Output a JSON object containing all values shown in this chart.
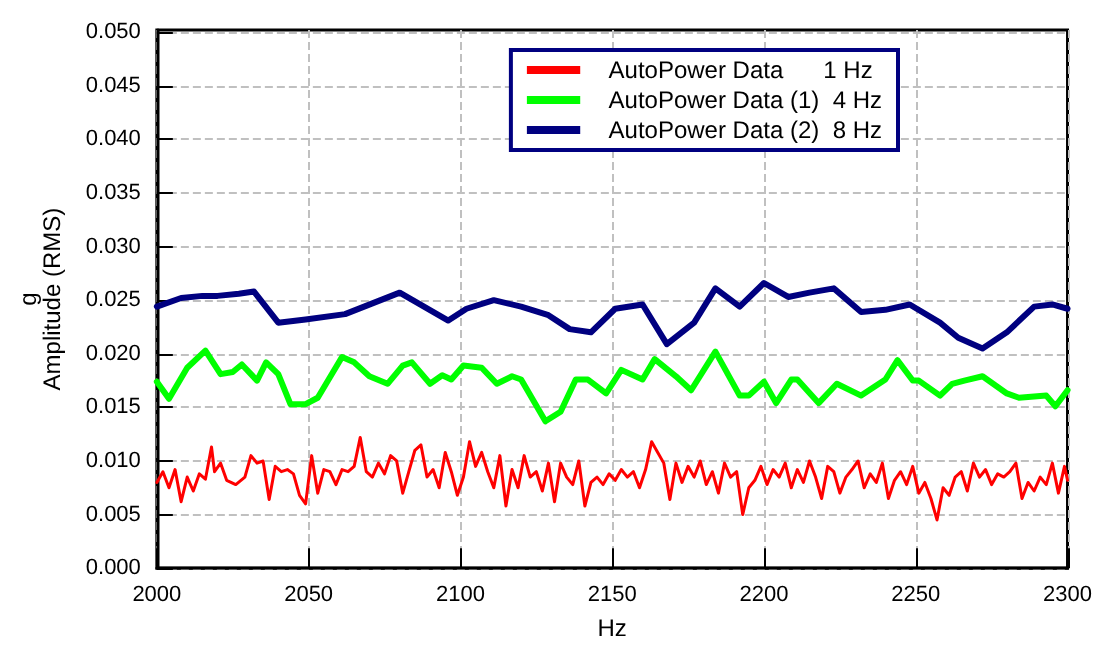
{
  "chart_data": {
    "type": "line",
    "xlabel": "Hz",
    "ylabel": "g\nAmplitude (RMS)",
    "xlim": [
      2000,
      2300
    ],
    "xticks": [
      2000,
      2050,
      2100,
      2150,
      2200,
      2250,
      2300
    ],
    "ylim": [
      0,
      0.0502
    ],
    "yticks": [
      {
        "value": 0,
        "label": "0.000"
      },
      {
        "value": 0.005,
        "label": "0.005"
      },
      {
        "value": 0.01,
        "label": "0.010"
      },
      {
        "value": 0.015,
        "label": "0.015"
      },
      {
        "value": 0.02,
        "label": "0.020"
      },
      {
        "value": 0.025,
        "label": "0.025"
      },
      {
        "value": 0.03,
        "label": "0.030"
      },
      {
        "value": 0.035,
        "label": "0.035"
      },
      {
        "value": 0.04,
        "label": "0.040"
      },
      {
        "value": 0.045,
        "label": "0.045"
      },
      {
        "value": 0.05,
        "label": "0.050"
      }
    ],
    "grid": true,
    "legend": "top right",
    "marker": "none",
    "line_style": "solid",
    "series": [
      {
        "name": "AutoPower Data      1 Hz",
        "color": "#ff0000",
        "x": [
          2000,
          2002,
          2004,
          2006,
          2008,
          2010,
          2012,
          2014,
          2016,
          2018,
          2019,
          2021,
          2023,
          2026,
          2029,
          2031,
          2033,
          2035,
          2037,
          2039,
          2041,
          2043,
          2045,
          2047,
          2049,
          2051,
          2053,
          2055,
          2057,
          2059,
          2061,
          2063,
          2065,
          2067,
          2069,
          2071,
          2073,
          2075,
          2077,
          2079,
          2081,
          2083,
          2085,
          2087,
          2089,
          2091,
          2093,
          2095,
          2097,
          2099,
          2101,
          2103,
          2105,
          2107,
          2109,
          2111,
          2113,
          2115,
          2117,
          2119,
          2121,
          2123,
          2125,
          2127,
          2129,
          2131,
          2133,
          2135,
          2137,
          2139,
          2141,
          2143,
          2145,
          2147,
          2149,
          2151,
          2153,
          2155,
          2157,
          2159,
          2161,
          2163,
          2165,
          2167,
          2169,
          2171,
          2173,
          2175,
          2177,
          2179,
          2181,
          2183,
          2185,
          2187,
          2189,
          2191,
          2193,
          2195,
          2197,
          2199,
          2201,
          2203,
          2205,
          2207,
          2209,
          2211,
          2213,
          2215,
          2217,
          2219,
          2221,
          2223,
          2225,
          2227,
          2229,
          2231,
          2233,
          2235,
          2237,
          2239,
          2241,
          2243,
          2245,
          2247,
          2249,
          2251,
          2253,
          2255,
          2257,
          2259,
          2261,
          2263,
          2265,
          2267,
          2269,
          2271,
          2273,
          2275,
          2277,
          2279,
          2281,
          2283,
          2285,
          2287,
          2289,
          2291,
          2293,
          2295,
          2297,
          2299,
          2300
        ],
        "values": [
          0.008,
          0.009,
          0.0075,
          0.0092,
          0.0062,
          0.0085,
          0.0072,
          0.0088,
          0.0083,
          0.0113,
          0.009,
          0.0098,
          0.0082,
          0.0078,
          0.0085,
          0.0105,
          0.0098,
          0.01,
          0.0064,
          0.0095,
          0.009,
          0.0092,
          0.0088,
          0.0068,
          0.006,
          0.0105,
          0.007,
          0.0092,
          0.009,
          0.0078,
          0.0092,
          0.009,
          0.0095,
          0.0122,
          0.009,
          0.0085,
          0.0098,
          0.0088,
          0.0105,
          0.01,
          0.007,
          0.009,
          0.011,
          0.0115,
          0.0085,
          0.0092,
          0.0075,
          0.0108,
          0.009,
          0.0068,
          0.0085,
          0.0118,
          0.0095,
          0.0108,
          0.009,
          0.0075,
          0.0105,
          0.0058,
          0.0092,
          0.0075,
          0.0105,
          0.0085,
          0.009,
          0.0072,
          0.0098,
          0.0062,
          0.0098,
          0.0085,
          0.0078,
          0.01,
          0.0058,
          0.008,
          0.0085,
          0.0078,
          0.0088,
          0.0082,
          0.0092,
          0.0085,
          0.009,
          0.0075,
          0.0092,
          0.0118,
          0.0108,
          0.0098,
          0.0064,
          0.0098,
          0.008,
          0.0095,
          0.0085,
          0.01,
          0.0078,
          0.009,
          0.007,
          0.0098,
          0.0085,
          0.009,
          0.005,
          0.0075,
          0.0082,
          0.0095,
          0.0078,
          0.0092,
          0.0085,
          0.0098,
          0.0075,
          0.0092,
          0.008,
          0.01,
          0.0085,
          0.0065,
          0.0095,
          0.009,
          0.007,
          0.0085,
          0.0092,
          0.01,
          0.0075,
          0.0088,
          0.008,
          0.0098,
          0.0065,
          0.0082,
          0.009,
          0.0078,
          0.0095,
          0.007,
          0.008,
          0.0065,
          0.0045,
          0.0075,
          0.0068,
          0.0085,
          0.009,
          0.0072,
          0.0098,
          0.0085,
          0.0092,
          0.0078,
          0.0088,
          0.0085,
          0.009,
          0.0098,
          0.0065,
          0.008,
          0.0072,
          0.0085,
          0.0078,
          0.0098,
          0.007,
          0.0095,
          0.0082
        ]
      },
      {
        "name": "AutoPower Data (1)  4 Hz",
        "color": "#00ff00",
        "x": [
          2000,
          2004,
          2010,
          2016,
          2021,
          2025,
          2028,
          2033,
          2036,
          2040,
          2044,
          2049,
          2053,
          2061,
          2065,
          2070,
          2076,
          2081,
          2084,
          2090,
          2094,
          2097,
          2101,
          2107,
          2112,
          2117,
          2120,
          2128,
          2133,
          2138,
          2142,
          2148,
          2153,
          2160,
          2164,
          2171,
          2176,
          2184,
          2192,
          2195,
          2200,
          2204,
          2209,
          2211,
          2218,
          2224,
          2232,
          2240,
          2244,
          2249,
          2251,
          2258,
          2262,
          2266,
          2272,
          2280,
          2284,
          2293,
          2296,
          2300
        ],
        "values": [
          0.0174,
          0.0158,
          0.0187,
          0.0203,
          0.0181,
          0.0183,
          0.019,
          0.0175,
          0.0192,
          0.0181,
          0.0153,
          0.0153,
          0.0159,
          0.0197,
          0.0192,
          0.0179,
          0.0172,
          0.0189,
          0.0192,
          0.0172,
          0.018,
          0.0176,
          0.0189,
          0.0187,
          0.0172,
          0.0179,
          0.0176,
          0.0137,
          0.0146,
          0.0176,
          0.0176,
          0.0163,
          0.0185,
          0.0176,
          0.0195,
          0.0179,
          0.0166,
          0.0202,
          0.0161,
          0.0161,
          0.0174,
          0.0154,
          0.0176,
          0.0176,
          0.0154,
          0.0172,
          0.0161,
          0.0176,
          0.0194,
          0.0175,
          0.0175,
          0.0161,
          0.0172,
          0.0175,
          0.0179,
          0.0163,
          0.0159,
          0.0161,
          0.0151,
          0.0166
        ]
      },
      {
        "name": "AutoPower Data (2)  8 Hz",
        "color": "#000080",
        "x": [
          2000,
          2008,
          2015,
          2020,
          2027,
          2032,
          2040,
          2049,
          2062,
          2071,
          2080,
          2096,
          2102,
          2111,
          2120,
          2129,
          2136,
          2143,
          2151,
          2160,
          2168,
          2177,
          2184,
          2192,
          2200,
          2208,
          2215,
          2223,
          2232,
          2240,
          2248,
          2258,
          2264,
          2272,
          2280,
          2289,
          2295,
          2300
        ],
        "values": [
          0.0244,
          0.0252,
          0.0254,
          0.0254,
          0.0256,
          0.0258,
          0.0229,
          0.0232,
          0.0237,
          0.0247,
          0.0257,
          0.0231,
          0.0242,
          0.025,
          0.0244,
          0.0236,
          0.0223,
          0.022,
          0.0242,
          0.0246,
          0.0209,
          0.0229,
          0.0261,
          0.0244,
          0.0266,
          0.0253,
          0.0257,
          0.0261,
          0.0239,
          0.0241,
          0.0246,
          0.0229,
          0.0215,
          0.0205,
          0.022,
          0.0244,
          0.0246,
          0.0242
        ]
      }
    ]
  }
}
